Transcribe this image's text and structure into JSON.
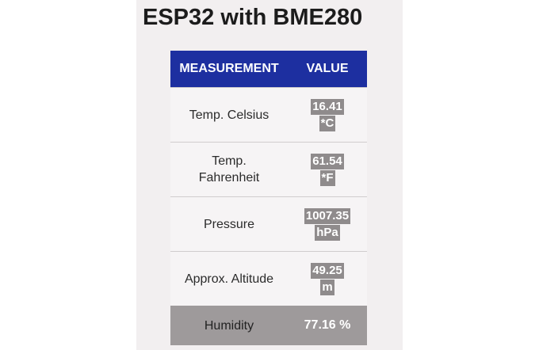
{
  "page": {
    "title": "ESP32 with BME280"
  },
  "table": {
    "headers": {
      "measurement": "MEASUREMENT",
      "value": "VALUE"
    },
    "rows": [
      {
        "label": "Temp. Celsius",
        "label_line2": "",
        "value": "16.41",
        "unit": "*C"
      },
      {
        "label": "Temp.",
        "label_line2": "Fahrenheit",
        "value": "61.54",
        "unit": "*F"
      },
      {
        "label": "Pressure",
        "label_line2": "",
        "value": "1007.35",
        "unit": "hPa"
      },
      {
        "label": "Approx. Altitude",
        "label_line2": "",
        "value": "49.25",
        "unit": "m"
      }
    ],
    "humidity": {
      "label": "Humidity",
      "value": "77.16 %"
    }
  },
  "colors": {
    "header_bg": "#1d2fa0",
    "value_highlight": "#8f8b8c",
    "humidity_row_bg": "#9e9a9b"
  }
}
